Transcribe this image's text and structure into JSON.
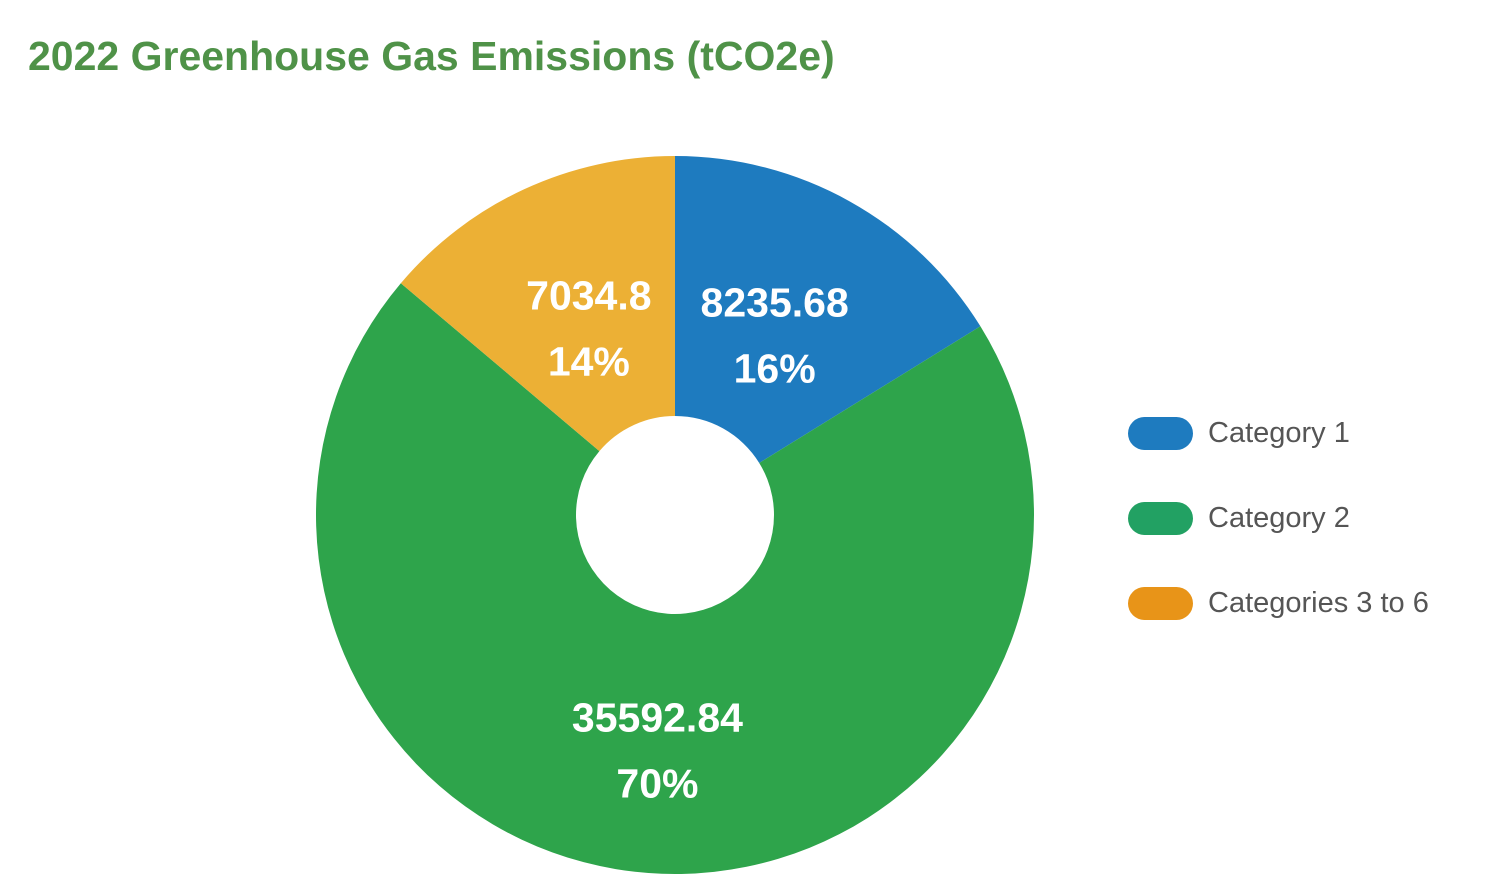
{
  "chart_data": {
    "type": "pie",
    "title": "2022 Greenhouse Gas Emissions (tCO2e)",
    "donut": true,
    "slices": [
      {
        "label": "Category 1",
        "value": 8235.68,
        "value_label": "8235.68",
        "percent_label": "16%",
        "color": "#1e7bbf",
        "legend_color": "#1e7bbf"
      },
      {
        "label": "Category 2",
        "value": 35592.84,
        "value_label": "35592.84",
        "percent_label": "70%",
        "color": "#2ea44b",
        "legend_color": "#22a163"
      },
      {
        "label": "Categories 3 to 6",
        "value": 7034.8,
        "value_label": "7034.8",
        "percent_label": "14%",
        "color": "#ecb035",
        "legend_color": "#e89418"
      }
    ],
    "legend_position": "right",
    "label_color": "#ffffff"
  }
}
